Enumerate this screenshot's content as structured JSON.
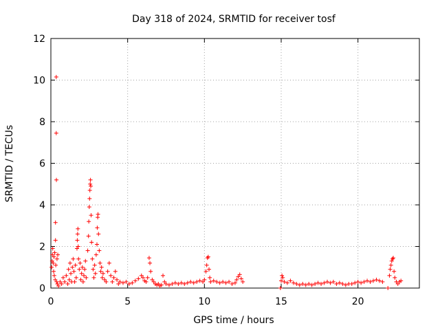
{
  "chart_data": {
    "type": "scatter",
    "title": "Day 318 of 2024, SRMTID for receiver tosf",
    "xlabel": "GPS time / hours",
    "ylabel": "SRMTID / TECUs",
    "xlim": [
      0,
      24
    ],
    "ylim": [
      0,
      12
    ],
    "xticks": [
      0,
      5,
      10,
      15,
      20
    ],
    "yticks": [
      0,
      2,
      4,
      6,
      8,
      10,
      12
    ],
    "grid": true,
    "marker": "+",
    "color": "#ff0000",
    "series": [
      {
        "name": "SRMTID",
        "points": [
          [
            0.05,
            1.0
          ],
          [
            0.08,
            1.3
          ],
          [
            0.1,
            1.6
          ],
          [
            0.12,
            1.9
          ],
          [
            0.15,
            1.2
          ],
          [
            0.18,
            0.8
          ],
          [
            0.2,
            1.5
          ],
          [
            0.22,
            0.6
          ],
          [
            0.25,
            1.7
          ],
          [
            0.28,
            0.4
          ],
          [
            0.3,
            2.3
          ],
          [
            0.3,
            3.15
          ],
          [
            0.32,
            1.1
          ],
          [
            0.35,
            10.15
          ],
          [
            0.35,
            7.45
          ],
          [
            0.36,
            5.2
          ],
          [
            0.38,
            0.3
          ],
          [
            0.4,
            1.4
          ],
          [
            0.42,
            0.2
          ],
          [
            0.45,
            1.6
          ],
          [
            0.5,
            0.1
          ],
          [
            0.6,
            0.3
          ],
          [
            0.7,
            0.2
          ],
          [
            0.8,
            0.5
          ],
          [
            0.9,
            0.3
          ],
          [
            1.0,
            0.6
          ],
          [
            1.1,
            0.2
          ],
          [
            1.15,
            0.9
          ],
          [
            1.2,
            0.4
          ],
          [
            1.25,
            1.2
          ],
          [
            1.3,
            0.7
          ],
          [
            1.35,
            0.3
          ],
          [
            1.4,
            1.0
          ],
          [
            1.45,
            1.4
          ],
          [
            1.5,
            0.8
          ],
          [
            1.55,
            0.3
          ],
          [
            1.6,
            1.1
          ],
          [
            1.65,
            0.5
          ],
          [
            1.7,
            1.9
          ],
          [
            1.72,
            2.3
          ],
          [
            1.74,
            2.6
          ],
          [
            1.76,
            2.85
          ],
          [
            1.78,
            2.0
          ],
          [
            1.8,
            1.4
          ],
          [
            1.85,
            0.9
          ],
          [
            1.9,
            1.2
          ],
          [
            1.95,
            0.4
          ],
          [
            2.0,
            0.7
          ],
          [
            2.05,
            1.0
          ],
          [
            2.1,
            0.3
          ],
          [
            2.15,
            0.6
          ],
          [
            2.2,
            0.9
          ],
          [
            2.25,
            1.3
          ],
          [
            2.3,
            0.5
          ],
          [
            2.4,
            1.8
          ],
          [
            2.45,
            2.5
          ],
          [
            2.47,
            3.2
          ],
          [
            2.5,
            3.9
          ],
          [
            2.52,
            4.3
          ],
          [
            2.54,
            4.7
          ],
          [
            2.56,
            5.0
          ],
          [
            2.58,
            5.2
          ],
          [
            2.6,
            4.9
          ],
          [
            2.62,
            3.5
          ],
          [
            2.65,
            2.2
          ],
          [
            2.7,
            1.4
          ],
          [
            2.75,
            0.9
          ],
          [
            2.8,
            0.5
          ],
          [
            2.85,
            1.1
          ],
          [
            2.9,
            0.7
          ],
          [
            2.95,
            1.6
          ],
          [
            3.0,
            2.1
          ],
          [
            3.02,
            2.9
          ],
          [
            3.05,
            3.4
          ],
          [
            3.07,
            3.55
          ],
          [
            3.1,
            2.6
          ],
          [
            3.15,
            1.8
          ],
          [
            3.2,
            1.2
          ],
          [
            3.25,
            0.8
          ],
          [
            3.3,
            1.0
          ],
          [
            3.35,
            0.5
          ],
          [
            3.4,
            0.7
          ],
          [
            3.5,
            0.4
          ],
          [
            3.6,
            0.3
          ],
          [
            3.7,
            0.8
          ],
          [
            3.8,
            1.2
          ],
          [
            3.9,
            0.6
          ],
          [
            4.0,
            0.3
          ],
          [
            4.1,
            0.5
          ],
          [
            4.2,
            0.8
          ],
          [
            4.3,
            0.4
          ],
          [
            4.4,
            0.2
          ],
          [
            4.5,
            0.3
          ],
          [
            4.7,
            0.25
          ],
          [
            4.9,
            0.3
          ],
          [
            5.1,
            0.2
          ],
          [
            5.3,
            0.25
          ],
          [
            5.5,
            0.35
          ],
          [
            5.7,
            0.45
          ],
          [
            5.9,
            0.6
          ],
          [
            6.0,
            0.5
          ],
          [
            6.1,
            0.35
          ],
          [
            6.2,
            0.3
          ],
          [
            6.3,
            0.5
          ],
          [
            6.4,
            1.45
          ],
          [
            6.45,
            1.2
          ],
          [
            6.5,
            0.8
          ],
          [
            6.6,
            0.4
          ],
          [
            6.7,
            0.3
          ],
          [
            6.8,
            0.2
          ],
          [
            6.9,
            0.15
          ],
          [
            7.0,
            0.2
          ],
          [
            7.1,
            0.1
          ],
          [
            7.2,
            0.15
          ],
          [
            7.3,
            0.6
          ],
          [
            7.4,
            0.3
          ],
          [
            7.5,
            0.2
          ],
          [
            7.7,
            0.15
          ],
          [
            7.9,
            0.2
          ],
          [
            8.1,
            0.25
          ],
          [
            8.3,
            0.2
          ],
          [
            8.5,
            0.25
          ],
          [
            8.7,
            0.2
          ],
          [
            8.9,
            0.25
          ],
          [
            9.1,
            0.3
          ],
          [
            9.3,
            0.25
          ],
          [
            9.5,
            0.3
          ],
          [
            9.7,
            0.35
          ],
          [
            9.9,
            0.3
          ],
          [
            10.0,
            0.4
          ],
          [
            10.1,
            0.8
          ],
          [
            10.15,
            1.1
          ],
          [
            10.2,
            1.45
          ],
          [
            10.25,
            1.5
          ],
          [
            10.3,
            0.9
          ],
          [
            10.35,
            0.5
          ],
          [
            10.4,
            0.3
          ],
          [
            10.6,
            0.35
          ],
          [
            10.8,
            0.3
          ],
          [
            11.0,
            0.25
          ],
          [
            11.2,
            0.3
          ],
          [
            11.4,
            0.25
          ],
          [
            11.6,
            0.3
          ],
          [
            11.8,
            0.2
          ],
          [
            12.0,
            0.25
          ],
          [
            12.1,
            0.4
          ],
          [
            12.2,
            0.55
          ],
          [
            12.3,
            0.65
          ],
          [
            12.4,
            0.45
          ],
          [
            12.5,
            0.3
          ],
          [
            14.95,
            0.0
          ],
          [
            15.0,
            0.35
          ],
          [
            15.05,
            0.6
          ],
          [
            15.1,
            0.5
          ],
          [
            15.2,
            0.3
          ],
          [
            15.4,
            0.25
          ],
          [
            15.6,
            0.35
          ],
          [
            15.8,
            0.25
          ],
          [
            16.0,
            0.2
          ],
          [
            16.2,
            0.15
          ],
          [
            16.4,
            0.2
          ],
          [
            16.6,
            0.15
          ],
          [
            16.8,
            0.2
          ],
          [
            17.0,
            0.15
          ],
          [
            17.2,
            0.2
          ],
          [
            17.4,
            0.25
          ],
          [
            17.6,
            0.2
          ],
          [
            17.8,
            0.25
          ],
          [
            18.0,
            0.3
          ],
          [
            18.2,
            0.25
          ],
          [
            18.4,
            0.3
          ],
          [
            18.6,
            0.2
          ],
          [
            18.8,
            0.25
          ],
          [
            19.0,
            0.2
          ],
          [
            19.2,
            0.15
          ],
          [
            19.4,
            0.2
          ],
          [
            19.6,
            0.2
          ],
          [
            19.8,
            0.25
          ],
          [
            20.0,
            0.3
          ],
          [
            20.2,
            0.25
          ],
          [
            20.4,
            0.3
          ],
          [
            20.6,
            0.35
          ],
          [
            20.8,
            0.3
          ],
          [
            21.0,
            0.35
          ],
          [
            21.2,
            0.4
          ],
          [
            21.4,
            0.35
          ],
          [
            21.6,
            0.3
          ],
          [
            21.95,
            0.0
          ],
          [
            22.05,
            0.6
          ],
          [
            22.1,
            0.9
          ],
          [
            22.15,
            1.1
          ],
          [
            22.2,
            1.3
          ],
          [
            22.25,
            1.4
          ],
          [
            22.3,
            1.45
          ],
          [
            22.35,
            0.8
          ],
          [
            22.4,
            0.5
          ],
          [
            22.5,
            0.3
          ],
          [
            22.6,
            0.2
          ],
          [
            22.7,
            0.3
          ],
          [
            22.8,
            0.35
          ]
        ]
      }
    ]
  }
}
